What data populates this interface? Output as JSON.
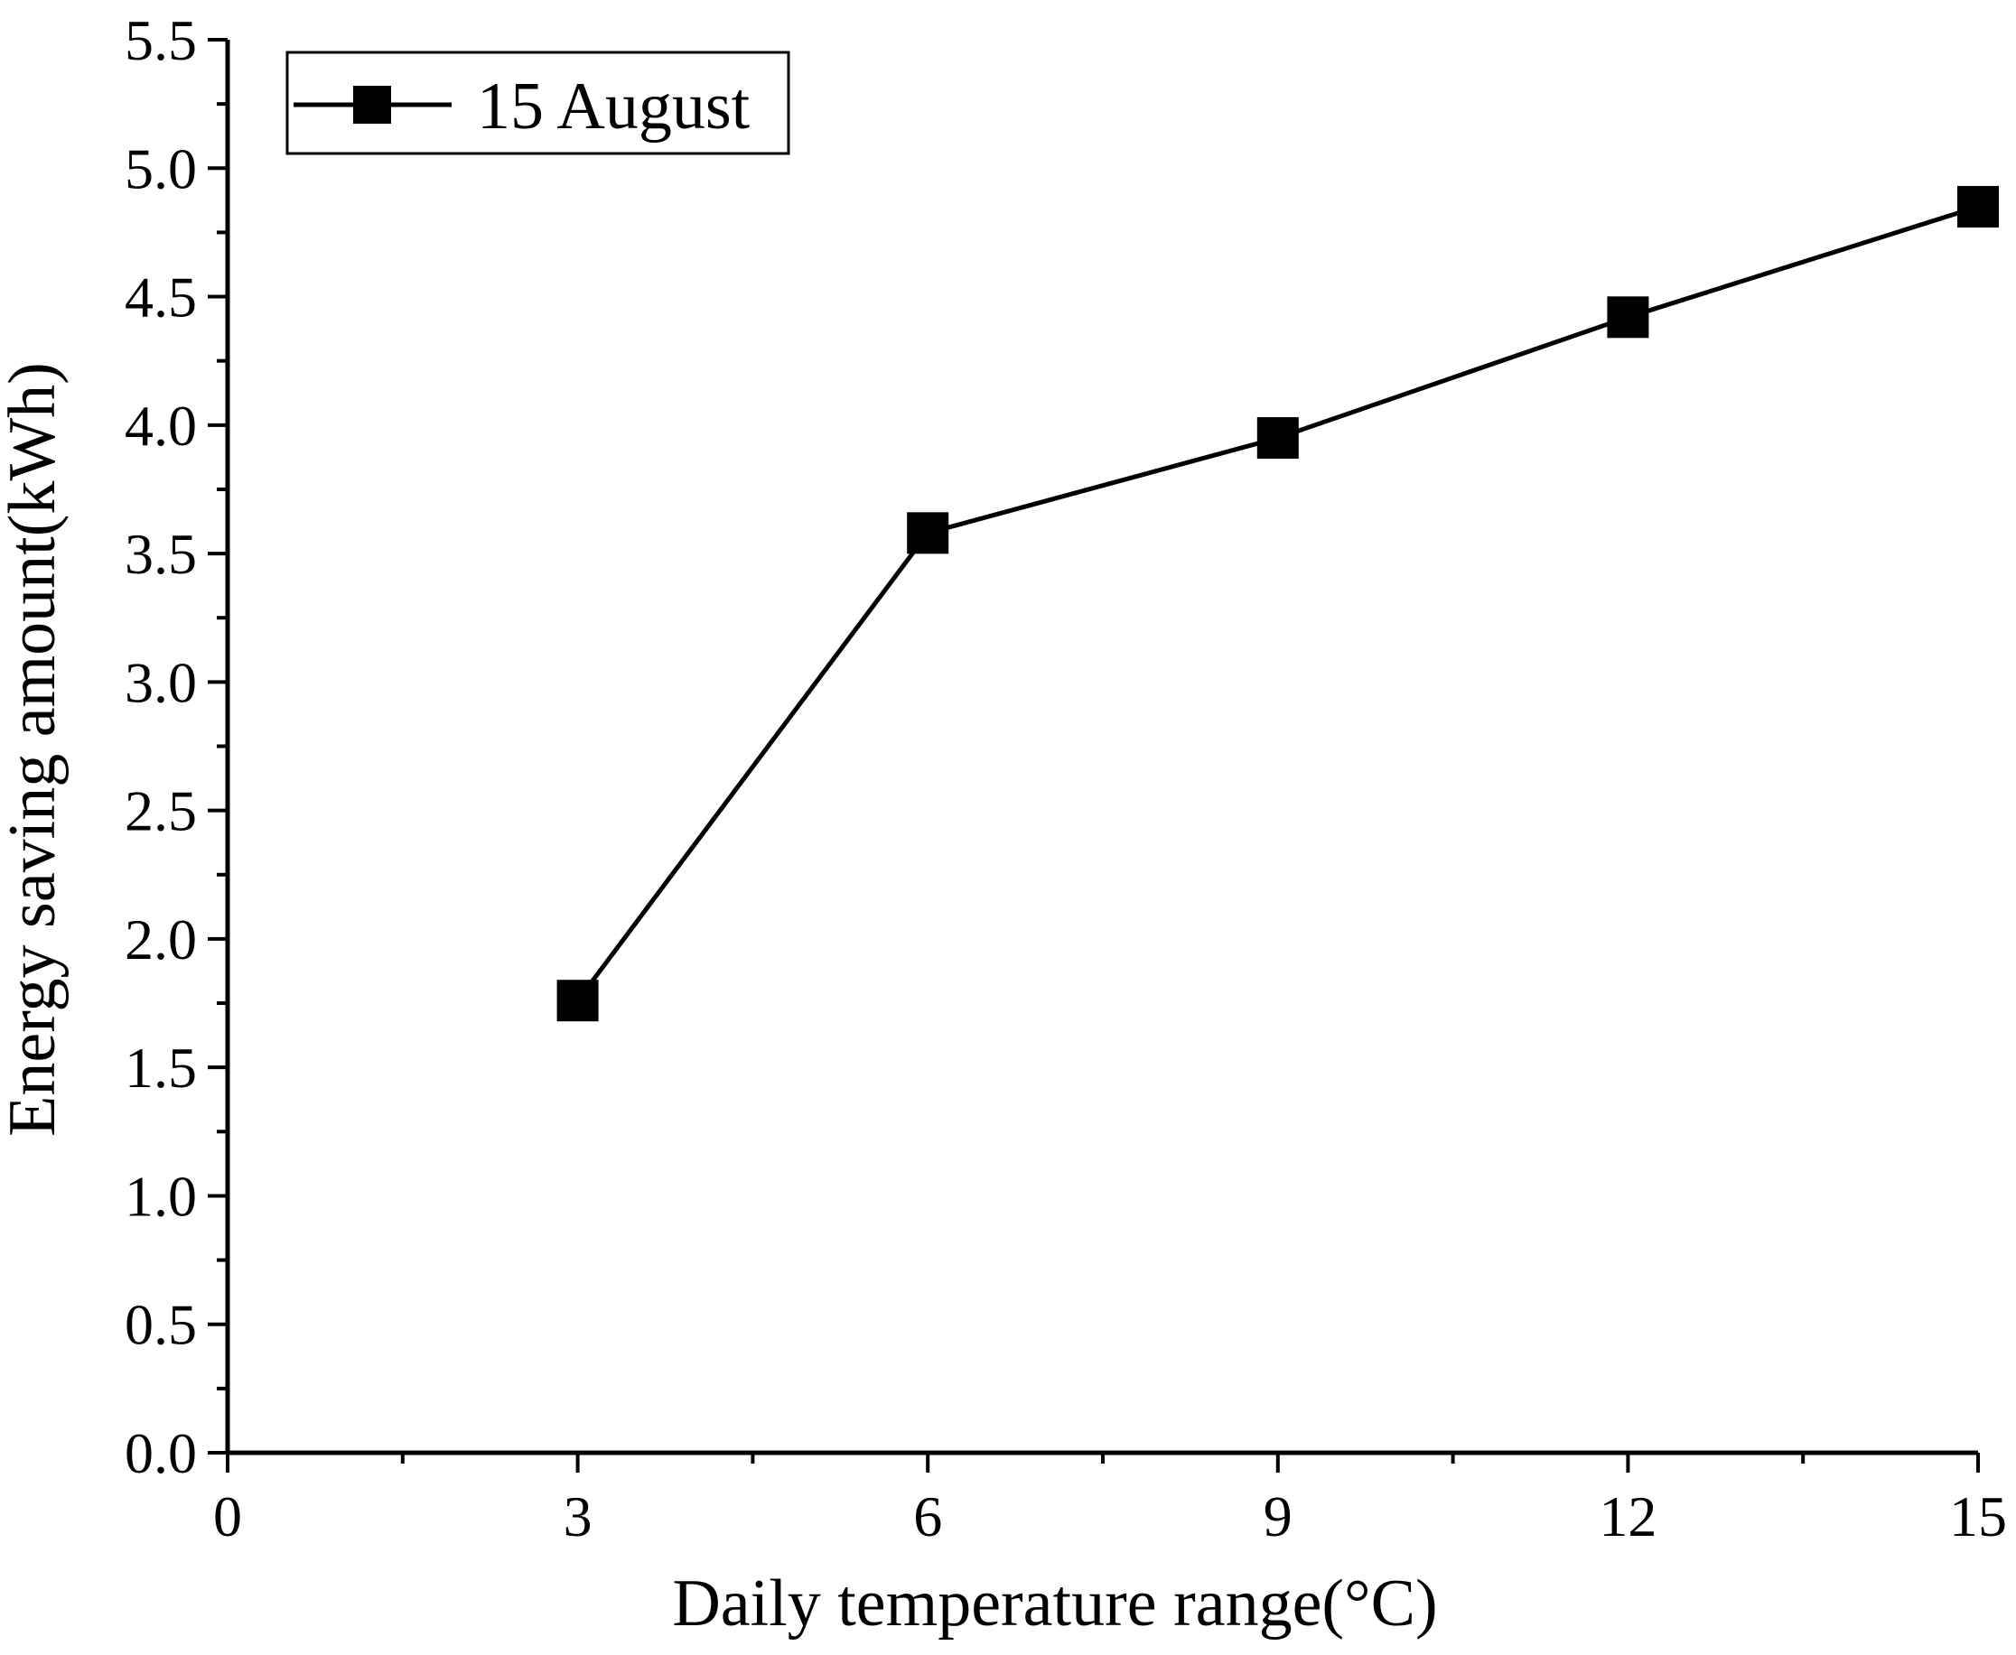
{
  "chart_data": {
    "type": "line",
    "title": "",
    "xlabel": "Daily temperature range(°C)",
    "ylabel": "Energy saving amount(kWh)",
    "xlim": [
      0,
      15
    ],
    "ylim": [
      0,
      5.5
    ],
    "x_ticks": [
      "0",
      "3",
      "6",
      "9",
      "12",
      "15"
    ],
    "y_ticks": [
      "0.0",
      "0.5",
      "1.0",
      "1.5",
      "2.0",
      "2.5",
      "3.0",
      "3.5",
      "4.0",
      "4.5",
      "5.0",
      "5.5"
    ],
    "grid": false,
    "legend_position": "top-left",
    "series": [
      {
        "name": "15 August",
        "marker": "square",
        "color": "#000000",
        "x": [
          3,
          6,
          9,
          12,
          15
        ],
        "values": [
          1.76,
          3.58,
          3.95,
          4.42,
          4.85
        ]
      }
    ]
  }
}
